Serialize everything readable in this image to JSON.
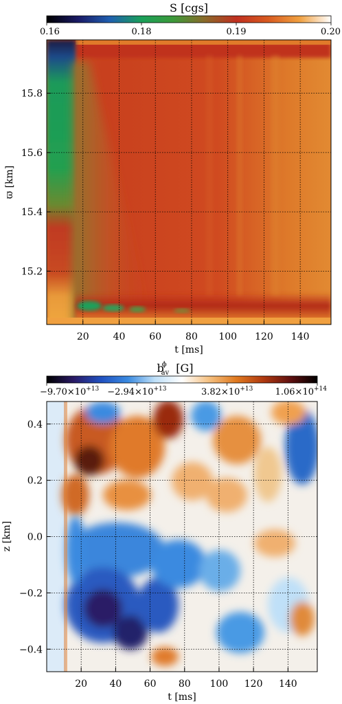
{
  "chart_data": [
    {
      "type": "heatmap",
      "colorbar_title": "S [cgs]",
      "colorbar_ticks": [
        "0.16",
        "0.18",
        "0.19",
        "0.20"
      ],
      "colorbar_range": [
        0.16,
        0.2
      ],
      "colorbar_stops": [
        "#000000",
        "#1a1a66",
        "#1f5fb0",
        "#1aa05a",
        "#3c9a3a",
        "#8a6a2a",
        "#c03020",
        "#d85a20",
        "#f0a040",
        "#ffffff"
      ],
      "xlabel": "t [ms]",
      "ylabel": "ϖ [km]",
      "xticks": [
        20,
        40,
        60,
        80,
        100,
        120,
        140
      ],
      "yticks": [
        15.2,
        15.4,
        15.6,
        15.8
      ],
      "xlim": [
        0,
        157
      ],
      "ylim": [
        15.02,
        15.98
      ],
      "grid": true
    },
    {
      "type": "heatmap",
      "colorbar_title": "b",
      "colorbar_title_sup": "ϕ",
      "colorbar_title_sub": "av",
      "colorbar_title_unit": "[G]",
      "colorbar_ticks": [
        {
          "base": "−9.70×10",
          "exp": "+13"
        },
        {
          "base": "−2.94×10",
          "exp": "+13"
        },
        {
          "base": "3.82×10",
          "exp": "+13"
        },
        {
          "base": "1.06×10",
          "exp": "+14"
        }
      ],
      "colorbar_range": [
        -97000000000000.0,
        106000000000000.0
      ],
      "colorbar_stops": [
        "#000000",
        "#2a1a66",
        "#2050c0",
        "#3a8ae0",
        "#bfe0f8",
        "#ffffff",
        "#f5c080",
        "#e07a20",
        "#b03a10",
        "#601010",
        "#000000"
      ],
      "xlabel": "t [ms]",
      "ylabel": "z [km]",
      "xticks": [
        20,
        40,
        60,
        80,
        100,
        120,
        140
      ],
      "yticks": [
        -0.4,
        -0.2,
        0.0,
        0.2,
        0.4
      ],
      "ytick_labels": [
        "−0.4",
        "−0.2",
        "0.0",
        "0.2",
        "0.4"
      ],
      "xlim": [
        0,
        157
      ],
      "ylim": [
        -0.48,
        0.48
      ],
      "grid": true
    }
  ]
}
